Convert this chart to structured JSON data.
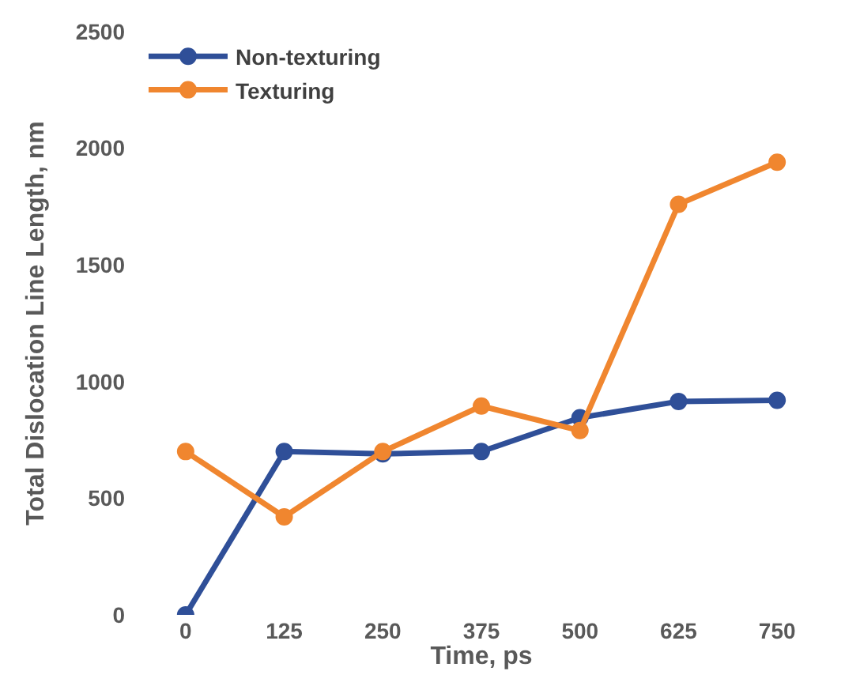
{
  "chart_data": {
    "type": "line",
    "xlabel": "Time, ps",
    "ylabel": "Total Dislocation Line Length, nm",
    "categories": [
      "0",
      "125",
      "250",
      "375",
      "500",
      "625",
      "750"
    ],
    "series": [
      {
        "name": "Non-texturing",
        "color": "#2f4f98",
        "values": [
          0,
          700,
          690,
          700,
          845,
          915,
          920
        ]
      },
      {
        "name": "Texturing",
        "color": "#f0862f",
        "values": [
          700,
          420,
          700,
          895,
          790,
          1760,
          1940
        ]
      }
    ],
    "ylim": [
      0,
      2500
    ],
    "yticks": [
      0,
      500,
      1000,
      1500,
      2000,
      2500
    ],
    "legend": "top left",
    "marker": "circle",
    "line_style": "solid"
  }
}
